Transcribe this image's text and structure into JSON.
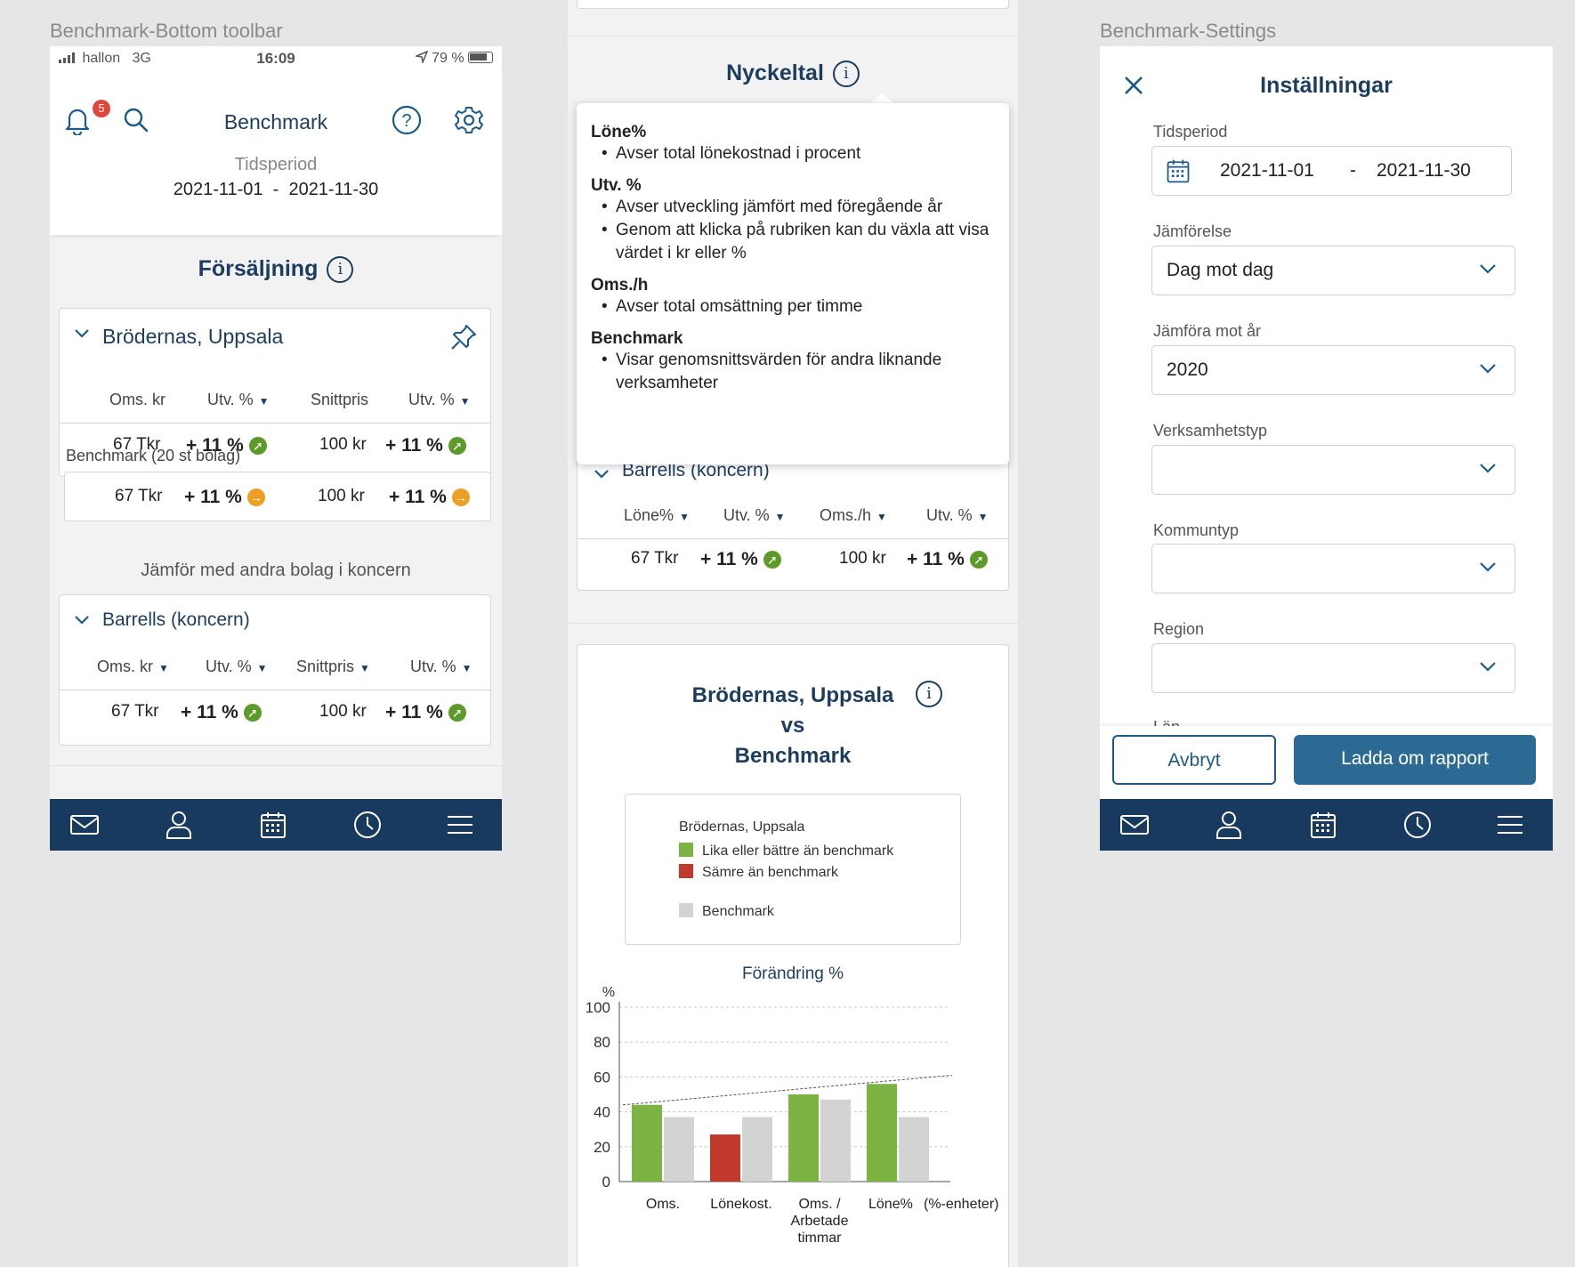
{
  "frames": {
    "left_label": "Benchmark-Bottom toolbar",
    "right_label": "Benchmark-Settings"
  },
  "status_bar": {
    "carrier": "hallon",
    "network": "3G",
    "time": "16:09",
    "battery": "79 %"
  },
  "header": {
    "notification_count": "5",
    "title": "Benchmark",
    "period_label": "Tidsperiod",
    "period": "2021-11-01  -  2021-11-30"
  },
  "sales": {
    "title": "Försäljning",
    "company_card": {
      "name": "Brödernas, Uppsala",
      "columns": [
        "Oms. kr",
        "Utv. %",
        "Snittpris",
        "Utv. %"
      ],
      "values": [
        "67 Tkr",
        "+ 11 %",
        "100 kr",
        "+ 11 %"
      ]
    },
    "benchmark_label": "Benchmark (20 st bolag)",
    "benchmark_values": [
      "67 Tkr",
      "+ 11 %",
      "100 kr",
      "+ 11 %"
    ],
    "compare_label": "Jämför med andra bolag i koncern",
    "group_card": {
      "name": "Barrells (koncern)",
      "columns": [
        "Oms. kr",
        "Utv. %",
        "Snittpris",
        "Utv. %"
      ],
      "values": [
        "67 Tkr",
        "+ 11 %",
        "100 kr",
        "+ 11 %"
      ]
    }
  },
  "key_figures": {
    "title": "Nyckeltal",
    "popover": [
      {
        "term": "Löne%",
        "items": [
          "Avser total lönekostnad i procent"
        ]
      },
      {
        "term": "Utv. %",
        "items": [
          "Avser utveckling jämfört med föregående år",
          "Genom att klicka på rubriken kan du växla att visa värdet i kr eller %"
        ]
      },
      {
        "term": "Oms./h",
        "items": [
          "Avser total omsättning per timme"
        ]
      },
      {
        "term": "Benchmark",
        "items": [
          "Visar genomsnittsvärden för andra liknande verksamheter"
        ]
      }
    ],
    "group_card": {
      "name": "Barrells (koncern)",
      "columns": [
        "Löne%",
        "Utv. %",
        "Oms./h",
        "Utv. %"
      ],
      "values": [
        "67 Tkr",
        "+ 11 %",
        "100 kr",
        "+ 11 %"
      ]
    }
  },
  "comparison": {
    "title_line1": "Brödernas, Uppsala",
    "title_line2": "vs",
    "title_line3": "Benchmark",
    "legend": {
      "company": "Brödernas, Uppsala",
      "better": "Lika eller bättre än benchmark",
      "worse": "Sämre än benchmark",
      "benchmark": "Benchmark"
    }
  },
  "chart_data": {
    "type": "bar",
    "title": "Förändring %",
    "ylabel": "%",
    "ylim": [
      0,
      100
    ],
    "yticks": [
      0,
      20,
      40,
      60,
      80,
      100
    ],
    "categories": [
      "Oms.",
      "Lönekost.",
      "Oms. / Arbetade timmar",
      "Löne% (%-enheter)"
    ],
    "category_lines": [
      [
        "Oms."
      ],
      [
        "Lönekost."
      ],
      [
        "Oms. /",
        "Arbetade",
        "timmar"
      ],
      [
        "Löne%",
        "(%-enheter)"
      ]
    ],
    "series": [
      {
        "name": "Brödernas, Uppsala",
        "values": [
          44,
          27,
          50,
          56
        ],
        "status": [
          "better",
          "worse",
          "better",
          "better"
        ]
      },
      {
        "name": "Benchmark",
        "values": [
          37,
          37,
          47,
          37
        ]
      }
    ],
    "trendline": {
      "from": 44,
      "to": 61
    },
    "grid": true,
    "colors": {
      "better": "#7cb342",
      "worse": "#c0392b",
      "benchmark": "#d3d3d3"
    }
  },
  "settings": {
    "title": "Inställningar",
    "period_label": "Tidsperiod",
    "period_from": "2021-11-01",
    "period_sep": "-",
    "period_to": "2021-11-30",
    "comparison_label": "Jämförelse",
    "comparison_value": "Dag mot dag",
    "year_label": "Jämföra mot år",
    "year_value": "2020",
    "business_type_label": "Verksamhetstyp",
    "business_type_value": "",
    "municipality_label": "Kommuntyp",
    "municipality_value": "",
    "region_label": "Region",
    "region_value": "",
    "county_label": "Län",
    "cancel": "Avbryt",
    "reload": "Ladda om rapport"
  },
  "colors": {
    "navy": "#173a5e",
    "accent": "#1d5a87",
    "green": "#5c9a2a",
    "orange": "#eba023",
    "red": "#e0463a"
  }
}
